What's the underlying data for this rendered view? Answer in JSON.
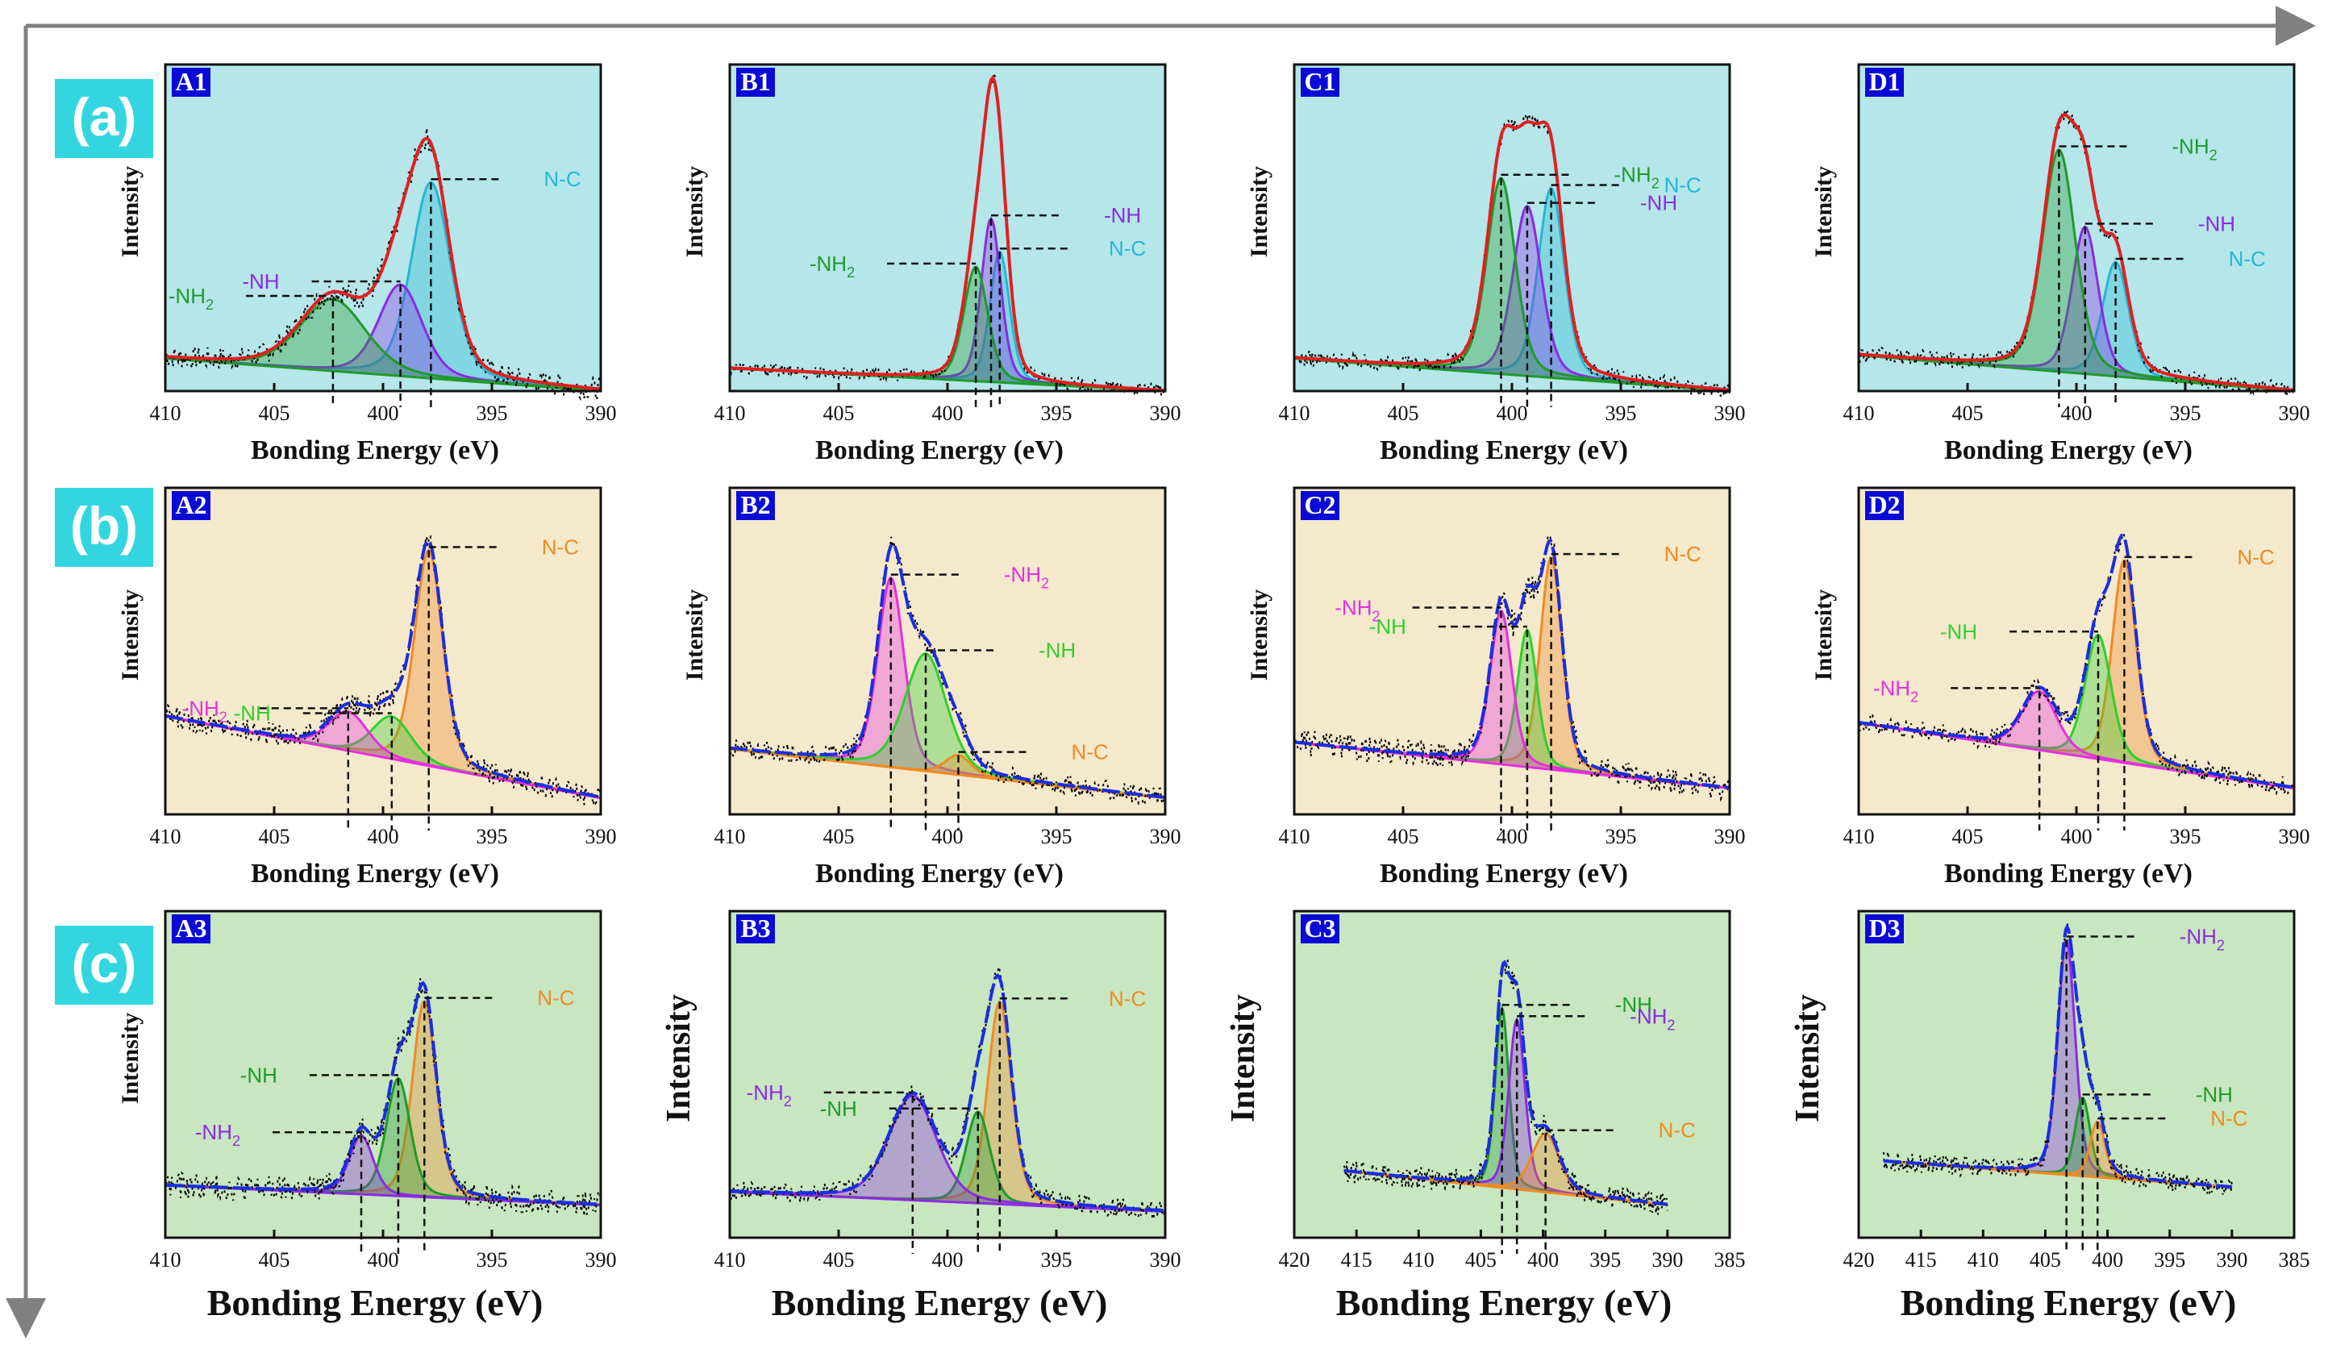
{
  "row_labels": [
    "(a)",
    "(b)",
    "(c)"
  ],
  "colors": {
    "row_a_background": "#b5e6ea",
    "row_b_background": "#f5e9cc",
    "row_c_background": "#c8e6c0",
    "row_label_background": "#33d6e0",
    "panel_label_background": "#0a0ad6",
    "arrow": "#808080",
    "N-C_row_a": "#23b7d4",
    "N-C_rows_bc": "#f08a24",
    "-NH_a": "#8a2be2",
    "-NH2_a": "#1f9a2a",
    "-NH_b": "#2fcf2f",
    "-NH2_b": "#e62ee0",
    "-NH_c": "#1f9a2a",
    "-NH2_c": "#8a2be2",
    "envelope_red": "#e02020",
    "envelope_blue": "#1a2ee0",
    "raw_points": "#000000"
  },
  "chart_data": [
    {
      "id": "A1",
      "type": "line",
      "title": "A1",
      "xlabel": "Bonding Energy (eV)",
      "ylabel": "Intensity",
      "xlim": [
        410,
        390
      ],
      "xticks": [
        410,
        405,
        400,
        395,
        390
      ],
      "ylim": [
        0,
        1
      ],
      "envelope": "red",
      "peaks": [
        {
          "name": "N-C",
          "center": 397.8,
          "height": 0.6,
          "width": 0.9,
          "color": "N-C_row_a",
          "label": "N-C"
        },
        {
          "name": "-NH",
          "center": 399.2,
          "height": 0.28,
          "width": 1.0,
          "color": "-NH_a",
          "label": "-NH"
        },
        {
          "name": "-NH2",
          "center": 402.3,
          "height": 0.22,
          "width": 1.5,
          "color": "-NH2_a",
          "label": "-NH",
          "sub": "2"
        }
      ],
      "baseline": [
        0.1,
        0.0
      ],
      "noise": 0.035
    },
    {
      "id": "B1",
      "type": "line",
      "title": "B1",
      "xlabel": "Bonding Energy (eV)",
      "ylabel": "Intensity",
      "xlim": [
        410,
        390
      ],
      "xticks": [
        410,
        405,
        400,
        395,
        390
      ],
      "ylim": [
        0,
        1
      ],
      "envelope": "red",
      "peaks": [
        {
          "name": "N-C",
          "center": 397.6,
          "height": 0.4,
          "width": 0.45,
          "color": "N-C_row_a",
          "label": "N-C"
        },
        {
          "name": "-NH",
          "center": 398.0,
          "height": 0.5,
          "width": 0.45,
          "color": "-NH_a",
          "label": "-NH"
        },
        {
          "name": "-NH2",
          "center": 398.7,
          "height": 0.35,
          "width": 0.55,
          "color": "-NH2_a",
          "label": "-NH",
          "sub": "2"
        }
      ],
      "baseline": [
        0.07,
        0.0
      ],
      "noise": 0.02
    },
    {
      "id": "C1",
      "type": "line",
      "title": "C1",
      "xlabel": "Bonding Energy (eV)",
      "ylabel": "Intensity",
      "xlim": [
        410,
        390
      ],
      "xticks": [
        410,
        405,
        400,
        395,
        390
      ],
      "ylim": [
        0,
        1
      ],
      "envelope": "red",
      "peaks": [
        {
          "name": "N-C",
          "center": 398.2,
          "height": 0.58,
          "width": 0.6,
          "color": "N-C_row_a",
          "label": "N-C"
        },
        {
          "name": "-NH",
          "center": 399.3,
          "height": 0.52,
          "width": 0.65,
          "color": "-NH_a",
          "label": "-NH"
        },
        {
          "name": "-NH2",
          "center": 400.5,
          "height": 0.6,
          "width": 0.65,
          "color": "-NH2_a",
          "label": "-NH",
          "sub": "2"
        }
      ],
      "baseline": [
        0.1,
        0.0
      ],
      "noise": 0.025
    },
    {
      "id": "D1",
      "type": "line",
      "title": "D1",
      "xlabel": "Bonding Energy (eV)",
      "ylabel": "Intensity",
      "xlim": [
        410,
        390
      ],
      "xticks": [
        410,
        405,
        400,
        395,
        390
      ],
      "ylim": [
        0,
        1
      ],
      "envelope": "red",
      "peaks": [
        {
          "name": "N-C",
          "center": 398.2,
          "height": 0.35,
          "width": 0.6,
          "color": "N-C_row_a",
          "label": "N-C"
        },
        {
          "name": "-NH",
          "center": 399.6,
          "height": 0.45,
          "width": 0.6,
          "color": "-NH_a",
          "label": "-NH"
        },
        {
          "name": "-NH2",
          "center": 400.8,
          "height": 0.68,
          "width": 0.75,
          "color": "-NH2_a",
          "label": "-NH",
          "sub": "2"
        }
      ],
      "baseline": [
        0.11,
        0.0
      ],
      "noise": 0.025
    },
    {
      "id": "A2",
      "type": "line",
      "title": "A2",
      "xlabel": "Bonding Energy (eV)",
      "ylabel": "Intensity",
      "xlim": [
        410,
        390
      ],
      "xticks": [
        410,
        405,
        400,
        395,
        390
      ],
      "ylim": [
        0,
        1
      ],
      "envelope": "blue",
      "peaks": [
        {
          "name": "N-C",
          "center": 397.9,
          "height": 0.66,
          "width": 0.65,
          "color": "N-C_rows_bc",
          "label": "N-C"
        },
        {
          "name": "-NH",
          "center": 399.6,
          "height": 0.13,
          "width": 0.9,
          "color": "-NH_b",
          "label": "-NH"
        },
        {
          "name": "-NH2",
          "center": 401.6,
          "height": 0.12,
          "width": 0.9,
          "color": "-NH2_b",
          "label": "-NH",
          "sub": "2"
        }
      ],
      "baseline": [
        0.3,
        0.05
      ],
      "noise": 0.035
    },
    {
      "id": "B2",
      "type": "line",
      "title": "B2",
      "xlabel": "Bonding Energy (eV)",
      "ylabel": "Intensity",
      "xlim": [
        410,
        390
      ],
      "xticks": [
        410,
        405,
        400,
        395,
        390
      ],
      "ylim": [
        0,
        1
      ],
      "envelope": "blue",
      "peaks": [
        {
          "name": "-NH2",
          "center": 402.6,
          "height": 0.58,
          "width": 0.6,
          "color": "-NH2_b",
          "label": "-NH",
          "sub": "2"
        },
        {
          "name": "-NH",
          "center": 401.0,
          "height": 0.36,
          "width": 0.95,
          "color": "-NH_b",
          "label": "-NH"
        },
        {
          "name": "N-C",
          "center": 399.5,
          "height": 0.06,
          "width": 0.6,
          "color": "N-C_rows_bc",
          "label": "N-C"
        }
      ],
      "baseline": [
        0.2,
        0.05
      ],
      "noise": 0.03
    },
    {
      "id": "C2",
      "type": "line",
      "title": "C2",
      "xlabel": "Bonding Energy (eV)",
      "ylabel": "Intensity",
      "xlim": [
        410,
        390
      ],
      "xticks": [
        410,
        405,
        400,
        395,
        390
      ],
      "ylim": [
        0,
        1
      ],
      "envelope": "blue",
      "peaks": [
        {
          "name": "N-C",
          "center": 398.2,
          "height": 0.65,
          "width": 0.5,
          "color": "N-C_rows_bc",
          "label": "N-C"
        },
        {
          "name": "-NH",
          "center": 399.3,
          "height": 0.42,
          "width": 0.45,
          "color": "-NH_b",
          "label": "-NH"
        },
        {
          "name": "-NH2",
          "center": 400.5,
          "height": 0.47,
          "width": 0.5,
          "color": "-NH2_b",
          "label": "-NH",
          "sub": "2"
        }
      ],
      "baseline": [
        0.22,
        0.08
      ],
      "noise": 0.04
    },
    {
      "id": "D2",
      "type": "line",
      "title": "D2",
      "xlabel": "Bonding Energy (eV)",
      "ylabel": "Intensity",
      "xlim": [
        410,
        390
      ],
      "xticks": [
        410,
        405,
        400,
        395,
        390
      ],
      "ylim": [
        0,
        1
      ],
      "envelope": "blue",
      "peaks": [
        {
          "name": "N-C",
          "center": 397.8,
          "height": 0.62,
          "width": 0.55,
          "color": "N-C_rows_bc",
          "label": "N-C"
        },
        {
          "name": "-NH",
          "center": 399.0,
          "height": 0.38,
          "width": 0.6,
          "color": "-NH_b",
          "label": "-NH"
        },
        {
          "name": "-NH2",
          "center": 401.7,
          "height": 0.18,
          "width": 0.8,
          "color": "-NH2_b",
          "label": "-NH",
          "sub": "2"
        }
      ],
      "baseline": [
        0.28,
        0.08
      ],
      "noise": 0.03
    },
    {
      "id": "A3",
      "type": "line",
      "title": "A3",
      "xlabel": "Bonding Energy (eV)",
      "ylabel": "Intensity",
      "xlim": [
        410,
        390
      ],
      "xticks": [
        410,
        405,
        400,
        395,
        390
      ],
      "ylim": [
        0,
        1
      ],
      "envelope": "blue",
      "peaks": [
        {
          "name": "N-C",
          "center": 398.1,
          "height": 0.6,
          "width": 0.55,
          "color": "N-C_rows_bc",
          "label": "N-C"
        },
        {
          "name": "-NH",
          "center": 399.3,
          "height": 0.36,
          "width": 0.55,
          "color": "-NH_c",
          "label": "-NH"
        },
        {
          "name": "-NH2",
          "center": 401.0,
          "height": 0.18,
          "width": 0.55,
          "color": "-NH2_c",
          "label": "-NH",
          "sub": "2"
        }
      ],
      "baseline": [
        0.16,
        0.1
      ],
      "noise": 0.04
    },
    {
      "id": "B3",
      "type": "line",
      "title": "B3",
      "xlabel": "Bonding Energy (eV)",
      "ylabel": "Intensity",
      "xlim": [
        410,
        390
      ],
      "xticks": [
        410,
        405,
        400,
        395,
        390
      ],
      "ylim": [
        0,
        1
      ],
      "envelope": "blue",
      "peaks": [
        {
          "name": "N-C",
          "center": 397.6,
          "height": 0.62,
          "width": 0.55,
          "color": "N-C_rows_bc",
          "label": "N-C"
        },
        {
          "name": "-NH",
          "center": 398.6,
          "height": 0.28,
          "width": 0.55,
          "color": "-NH_c",
          "label": "-NH"
        },
        {
          "name": "-NH2",
          "center": 401.6,
          "height": 0.32,
          "width": 1.1,
          "color": "-NH2_c",
          "label": "-NH",
          "sub": "2"
        }
      ],
      "baseline": [
        0.14,
        0.08
      ],
      "noise": 0.03
    },
    {
      "id": "C3",
      "type": "line",
      "title": "C3",
      "xlabel": "Bonding Energy (eV)",
      "ylabel": "Intensity",
      "xlim": [
        420,
        385
      ],
      "xticks": [
        420,
        415,
        410,
        405,
        400,
        395,
        390,
        385
      ],
      "ylim": [
        0,
        1
      ],
      "envelope": "blue",
      "peaks": [
        {
          "name": "-NH",
          "center": 403.3,
          "height": 0.55,
          "width": 0.55,
          "color": "-NH_c",
          "label": "-NH"
        },
        {
          "name": "-NH2",
          "center": 402.1,
          "height": 0.52,
          "width": 0.65,
          "color": "-NH2_c",
          "label": "-NH",
          "sub": "2"
        },
        {
          "name": "N-C",
          "center": 399.8,
          "height": 0.18,
          "width": 1.1,
          "color": "N-C_rows_bc",
          "label": "N-C"
        }
      ],
      "baseline": [
        0.22,
        0.08
      ],
      "noise": 0.035,
      "xrange_data": [
        416,
        390
      ]
    },
    {
      "id": "D3",
      "type": "line",
      "title": "D3",
      "xlabel": "Bonding Energy (eV)",
      "ylabel": "Intensity",
      "xlim": [
        420,
        385
      ],
      "xticks": [
        420,
        415,
        410,
        405,
        400,
        395,
        390,
        385
      ],
      "ylim": [
        0,
        1
      ],
      "envelope": "blue",
      "peaks": [
        {
          "name": "-NH2",
          "center": 403.3,
          "height": 0.72,
          "width": 0.7,
          "color": "-NH2_c",
          "label": "-NH",
          "sub": "2"
        },
        {
          "name": "-NH",
          "center": 402.0,
          "height": 0.24,
          "width": 0.6,
          "color": "-NH_c",
          "label": "-NH"
        },
        {
          "name": "N-C",
          "center": 400.8,
          "height": 0.17,
          "width": 0.6,
          "color": "N-C_rows_bc",
          "label": "N-C"
        }
      ],
      "baseline": [
        0.24,
        0.14
      ],
      "noise": 0.03,
      "xrange_data": [
        418,
        390
      ]
    }
  ]
}
